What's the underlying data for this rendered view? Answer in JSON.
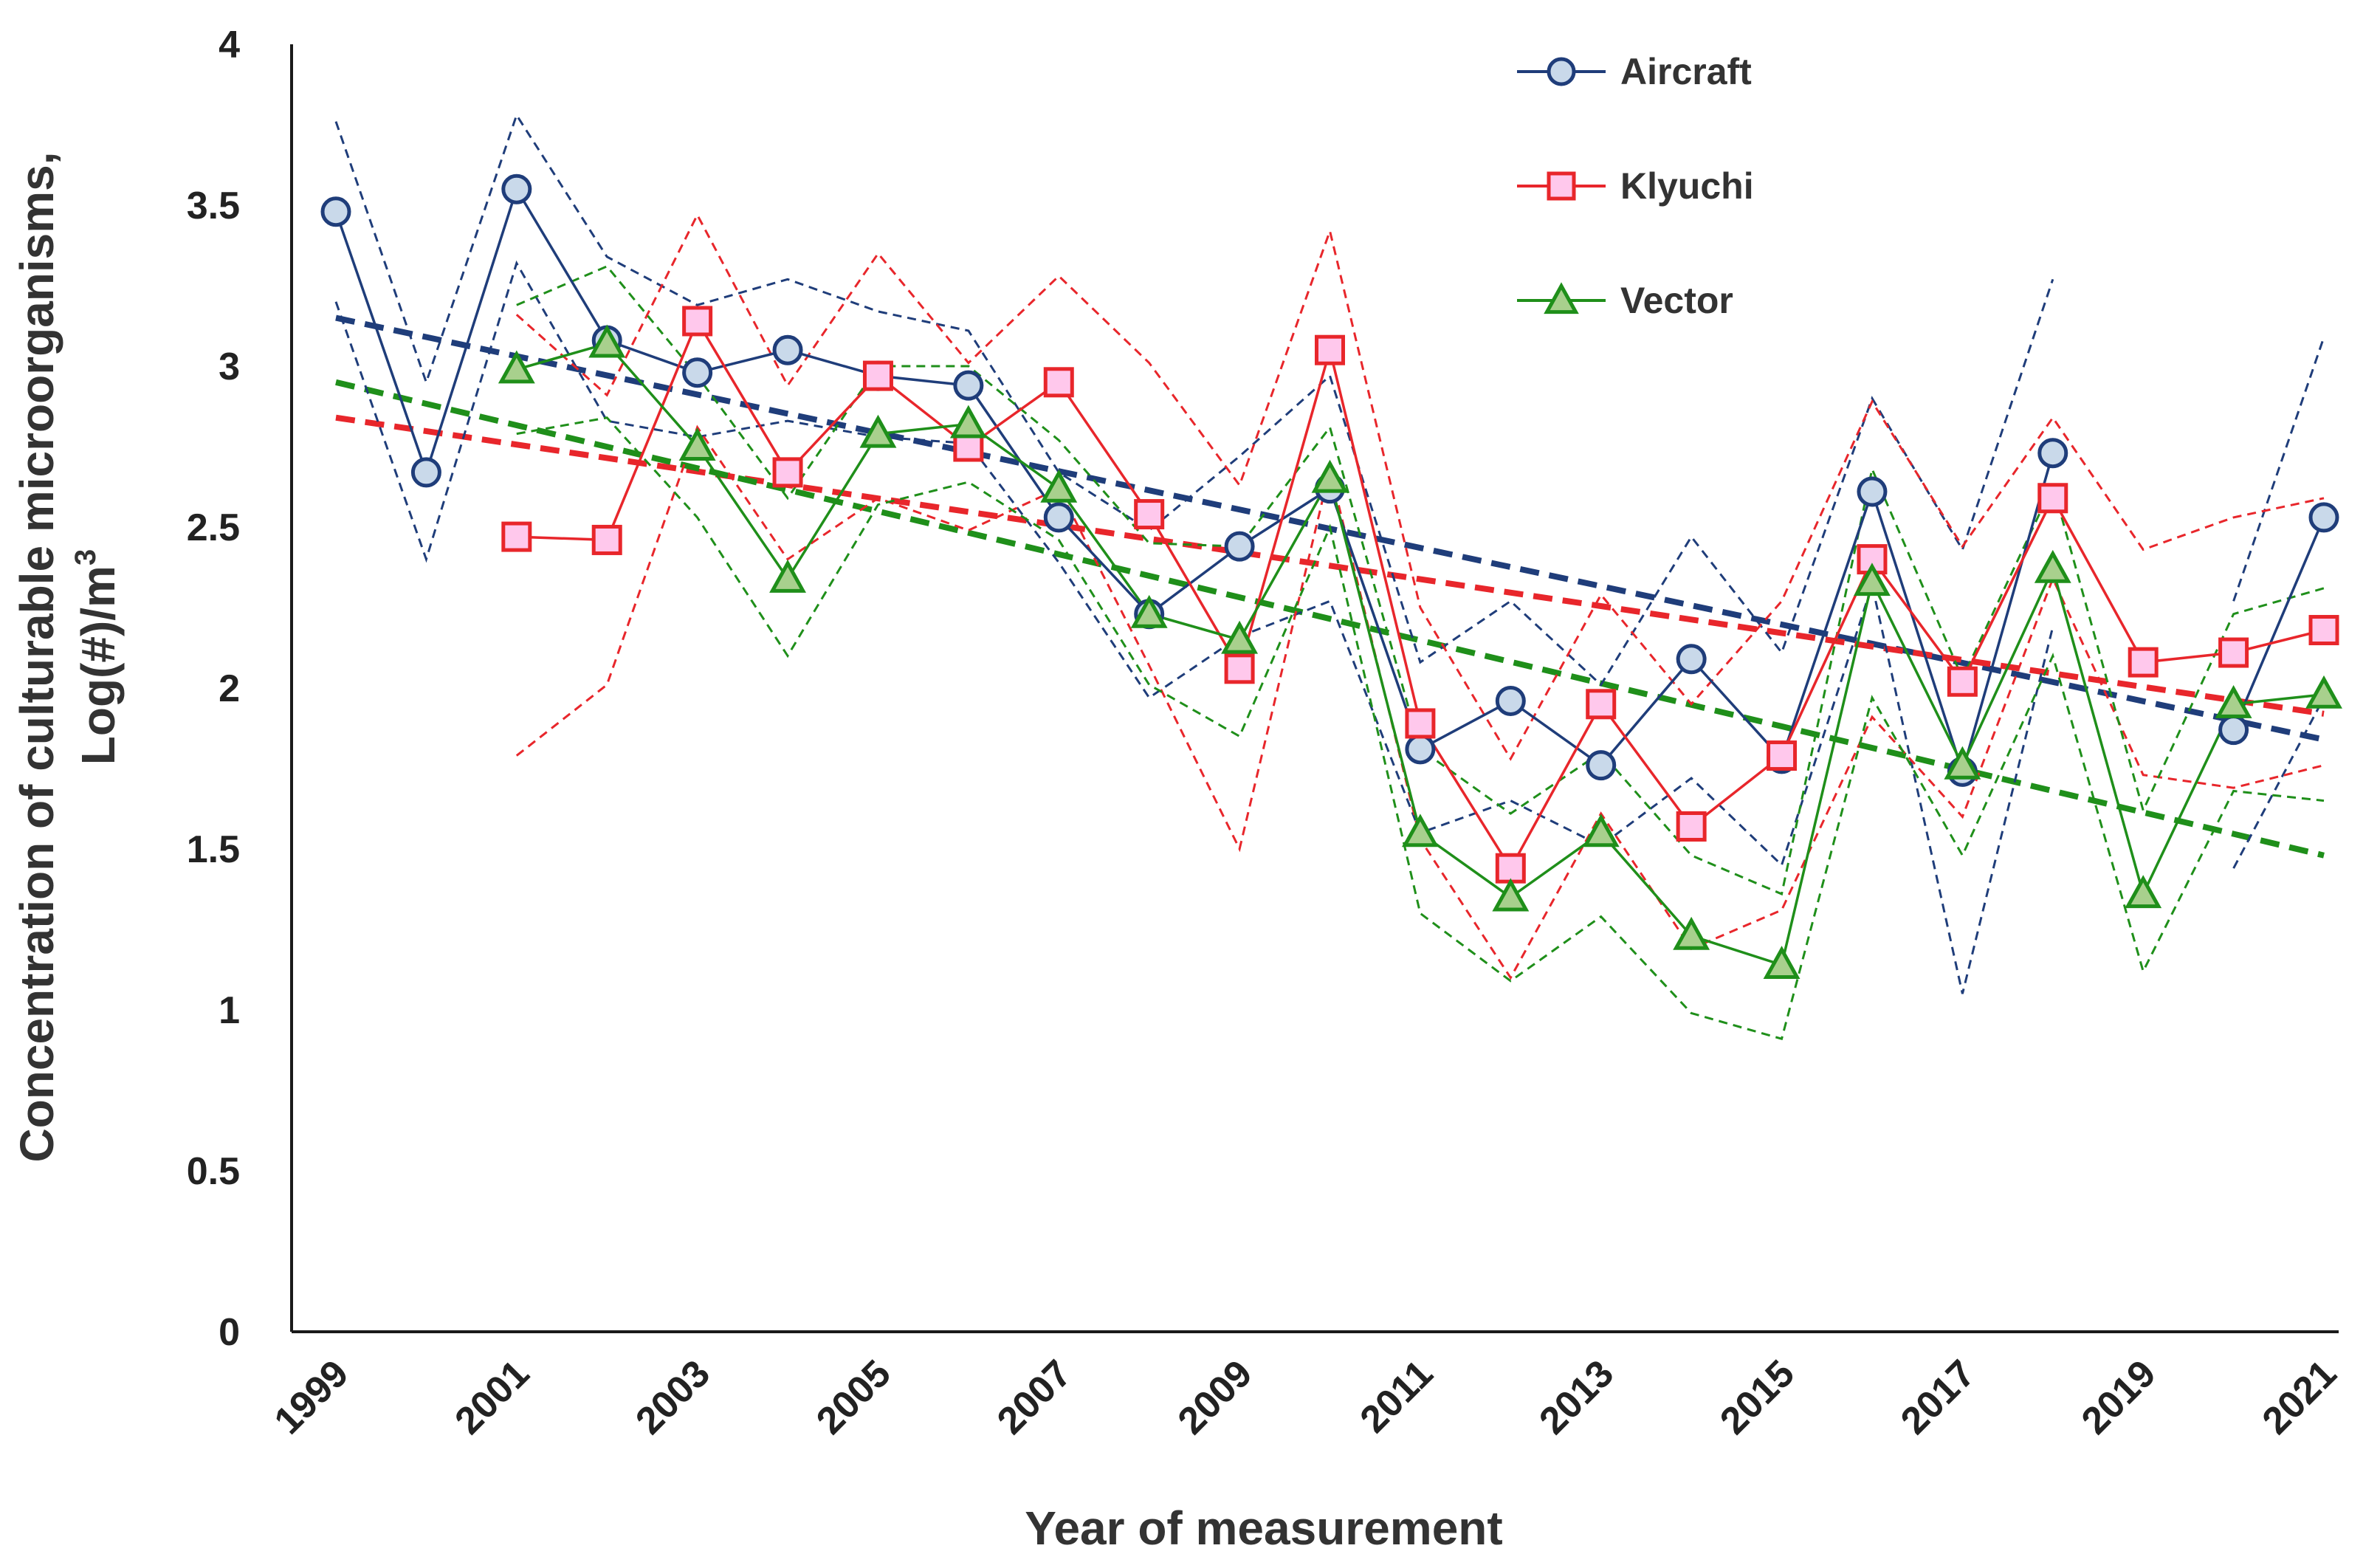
{
  "chart_data": {
    "type": "line",
    "title": "",
    "xlabel": "Year of measurement",
    "ylabel_line1": "Concentration of culturable microorganisms,",
    "ylabel_line2_base": "Log(#)/m",
    "ylabel_line2_sup": "3",
    "ylim": [
      0,
      4
    ],
    "y_ticks": [
      "0",
      "0.5",
      "1",
      "1.5",
      "2",
      "2.5",
      "3",
      "3.5",
      "4"
    ],
    "x_ticks": [
      "1999",
      "2001",
      "2003",
      "2005",
      "2007",
      "2009",
      "2011",
      "2013",
      "2015",
      "2017",
      "2019",
      "2021"
    ],
    "x": [
      1999,
      2000,
      2001,
      2002,
      2003,
      2004,
      2005,
      2006,
      2007,
      2008,
      2009,
      2010,
      2011,
      2012,
      2013,
      2014,
      2015,
      2016,
      2017,
      2018,
      2019,
      2020,
      2021
    ],
    "legend_position": "top-right",
    "series": [
      {
        "name": "Aircraft",
        "color": "#1f3d7a",
        "fill": "#c9d9ea",
        "marker": "circle",
        "values": [
          3.48,
          2.67,
          3.55,
          3.08,
          2.98,
          3.05,
          2.97,
          2.94,
          2.53,
          2.23,
          2.44,
          2.62,
          1.81,
          1.96,
          1.76,
          2.09,
          1.78,
          2.61,
          1.74,
          2.73,
          null,
          1.87,
          2.53
        ],
        "upper": [
          3.76,
          2.95,
          3.78,
          3.34,
          3.19,
          3.27,
          3.17,
          3.11,
          2.67,
          2.49,
          2.72,
          2.97,
          2.08,
          2.27,
          2.01,
          2.47,
          2.11,
          2.9,
          2.43,
          3.27,
          null,
          2.27,
          3.09
        ],
        "lower": [
          3.2,
          2.4,
          3.32,
          2.83,
          2.78,
          2.83,
          2.78,
          2.76,
          2.39,
          1.97,
          2.16,
          2.27,
          1.55,
          1.65,
          1.51,
          1.72,
          1.45,
          2.32,
          1.05,
          2.19,
          null,
          1.44,
          1.97
        ],
        "trend": [
          3.15,
          1.84
        ]
      },
      {
        "name": "Klyuchi",
        "color": "#e8262b",
        "fill": "#ffc8ec",
        "marker": "square",
        "values": [
          null,
          null,
          2.47,
          2.46,
          3.14,
          2.67,
          2.97,
          2.75,
          2.95,
          2.54,
          2.06,
          3.05,
          1.89,
          1.44,
          1.95,
          1.57,
          1.79,
          2.4,
          2.02,
          2.59,
          2.08,
          2.11,
          2.18
        ],
        "upper": [
          null,
          null,
          3.16,
          2.91,
          3.47,
          2.94,
          3.35,
          3.01,
          3.28,
          3.01,
          2.63,
          3.42,
          2.25,
          1.78,
          2.29,
          1.95,
          2.27,
          2.89,
          2.44,
          2.84,
          2.43,
          2.53,
          2.59
        ],
        "lower": [
          null,
          null,
          1.79,
          2.01,
          2.81,
          2.4,
          2.59,
          2.49,
          2.62,
          2.07,
          1.5,
          2.68,
          1.53,
          1.1,
          1.61,
          1.19,
          1.31,
          1.91,
          1.6,
          2.34,
          1.73,
          1.69,
          1.76
        ],
        "trend": [
          2.84,
          1.92
        ]
      },
      {
        "name": "Vector",
        "color": "#1f8f1a",
        "fill": "#a8d08d",
        "marker": "triangle",
        "values": [
          null,
          null,
          2.99,
          3.07,
          2.75,
          2.34,
          2.79,
          2.82,
          2.62,
          2.23,
          2.15,
          2.65,
          1.55,
          1.35,
          1.55,
          1.23,
          1.14,
          2.33,
          1.76,
          2.37,
          1.36,
          1.95,
          1.98
        ],
        "upper": [
          null,
          null,
          3.19,
          3.31,
          2.97,
          2.59,
          3.0,
          3.0,
          2.77,
          2.45,
          2.44,
          2.81,
          1.81,
          1.61,
          1.8,
          1.48,
          1.36,
          2.68,
          2.03,
          2.63,
          1.62,
          2.23,
          2.31
        ],
        "lower": [
          null,
          null,
          2.79,
          2.84,
          2.53,
          2.1,
          2.57,
          2.64,
          2.46,
          2.01,
          1.85,
          2.5,
          1.3,
          1.09,
          1.29,
          0.99,
          0.91,
          1.97,
          1.48,
          2.1,
          1.12,
          1.68,
          1.65
        ],
        "trend": [
          2.95,
          1.48
        ]
      }
    ]
  }
}
